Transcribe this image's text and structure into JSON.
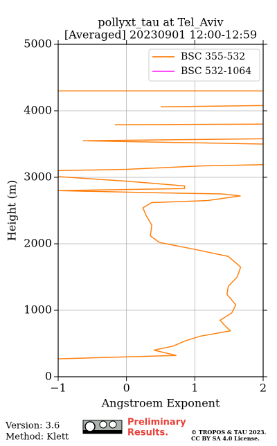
{
  "chart_data": {
    "type": "line",
    "title": "pollyxt_tau at Tel_Aviv",
    "subtitle": "[Averaged] 20230901 12:00-12:59",
    "x_label": "Angstroem Exponent",
    "y_label": "Height (m)",
    "xlim": [
      -1,
      2
    ],
    "xticks": [
      {
        "value": -1,
        "label": "−1"
      },
      0,
      1,
      2
    ],
    "ylim": [
      0,
      5000
    ],
    "yticks": [
      0,
      1000,
      2000,
      3000,
      4000,
      5000
    ],
    "grid": true,
    "legend": "upper right",
    "y": [
      270,
      320,
      400,
      460,
      540,
      610,
      690,
      770,
      850,
      960,
      1080,
      1240,
      1360,
      1500,
      1650,
      1810,
      1920,
      2020,
      2120,
      2280,
      2420,
      2540,
      2620,
      2650,
      2720,
      2750,
      2770,
      2800,
      2830,
      2870,
      2940,
      3010,
      3100,
      3120,
      3170,
      3190,
      3300,
      3500,
      3550,
      3580,
      3680,
      3790,
      3800,
      3900,
      4060,
      4080,
      4200,
      4300,
      4300
    ],
    "series": [
      {
        "name": "BSC 355-532",
        "color": "#ff7f0e",
        "values": [
          -1.0,
          0.73,
          0.4,
          0.68,
          0.86,
          1.08,
          1.52,
          1.44,
          1.37,
          1.54,
          1.6,
          1.47,
          1.49,
          1.62,
          1.67,
          1.49,
          0.98,
          0.48,
          0.35,
          0.37,
          0.29,
          0.24,
          0.37,
          1.18,
          1.67,
          1.39,
          0.3,
          -1.0,
          0.85,
          0.85,
          0.02,
          -1.0,
          -1.0,
          0,
          1.08,
          2.0,
          null,
          2.0,
          -0.64,
          2.0,
          null,
          -0.17,
          2.0,
          null,
          0.5,
          2.0,
          null,
          -1.0,
          2.0
        ]
      },
      {
        "name": "BSC 532-1064",
        "color": "#ff33ff",
        "values": [
          null,
          null,
          null,
          null,
          null,
          null,
          null,
          null,
          null,
          null,
          null,
          null,
          null,
          null,
          null,
          null,
          null,
          null,
          null,
          null,
          null,
          null,
          null,
          null,
          null,
          null,
          null,
          null,
          null,
          null,
          null,
          null,
          null,
          null,
          null,
          null,
          null,
          null,
          null,
          null,
          null,
          null,
          null,
          null,
          null,
          null,
          null,
          null,
          null
        ]
      }
    ]
  },
  "footer": {
    "version": "Version: 3.6",
    "method": "Method: Klett",
    "preliminary": "Preliminary",
    "results": "Results.",
    "copyright": "© TROPOS & TAU 2023.",
    "license": "CC BY SA 4.0 License."
  }
}
